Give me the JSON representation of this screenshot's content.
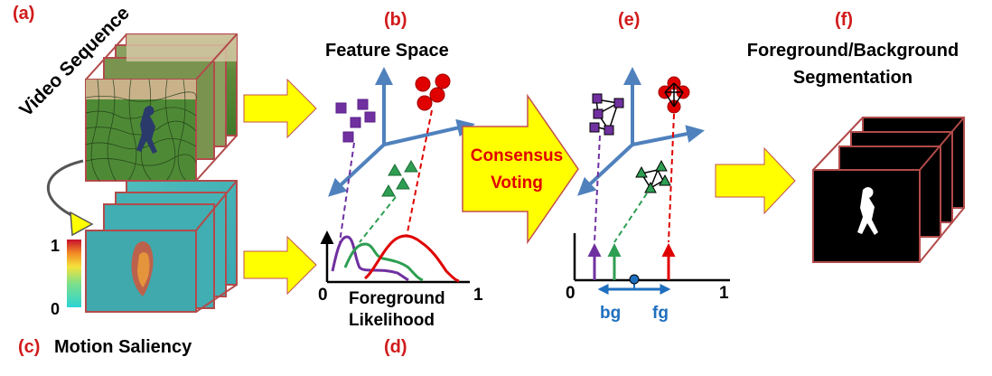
{
  "panels": {
    "a": "(a)",
    "b": "(b)",
    "c": "(c)",
    "d": "(d)",
    "e": "(e)",
    "f": "(f)"
  },
  "titles": {
    "video_sequence": "Video Sequence",
    "feature_space": "Feature Space",
    "motion_saliency": "Motion Saliency",
    "consensus_line1": "Consensus",
    "consensus_line2": "Voting",
    "segmentation_line1": "Foreground/Background",
    "segmentation_line2": "Segmentation"
  },
  "colorbar": {
    "max": "1",
    "min": "0"
  },
  "likelihood_plot": {
    "x_min": "0",
    "x_max": "1",
    "xlabel_line1": "Foreground",
    "xlabel_line2": "Likelihood"
  },
  "voting_plot": {
    "x_min": "0",
    "x_max": "1",
    "bg_label": "bg",
    "fg_label": "fg"
  },
  "colors": {
    "panel_label": "#d11a1a",
    "axis_blue": "#4f81bd",
    "purple": "#7030a0",
    "green": "#2e9e52",
    "red": "#e00000",
    "arrow_yellow": "#ffff00",
    "arrow_outline": "#c0504d",
    "cube_edge": "#b24a4a",
    "bg_fg_blue": "#1f6fbf"
  }
}
